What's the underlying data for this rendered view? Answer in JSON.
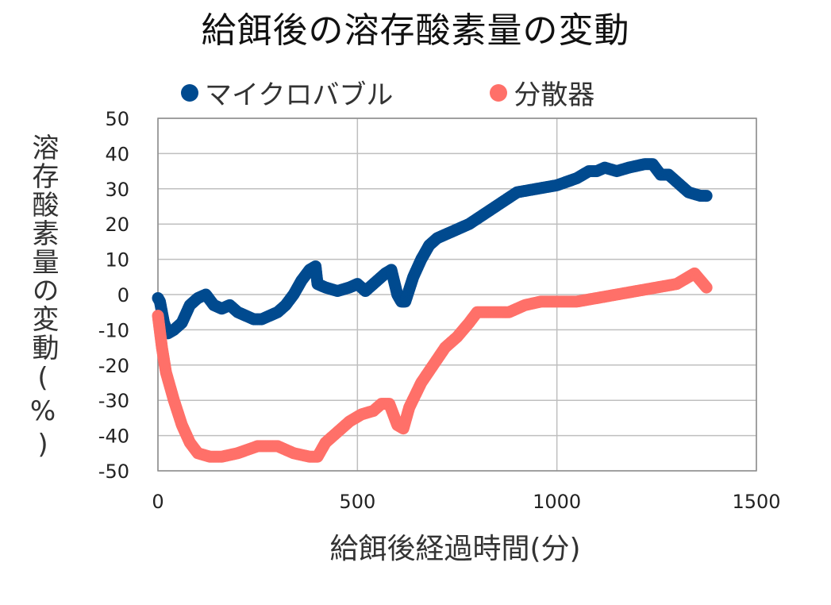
{
  "chart_data": {
    "type": "scatter",
    "title": "給餌後の溶存酸素量の変動",
    "xlabel": "給餌後経過時間(分)",
    "ylabel": "溶存酸素量の変動(%)",
    "xlim": [
      0,
      1500
    ],
    "ylim": [
      -50,
      50
    ],
    "x_ticks": [
      0,
      500,
      1000,
      1500
    ],
    "y_ticks": [
      50,
      40,
      30,
      20,
      10,
      0,
      -10,
      -20,
      -30,
      -40,
      -50
    ],
    "grid": true,
    "legend_position": "top",
    "series": [
      {
        "name": "マイクロバブル",
        "color": "#004A8F",
        "x": [
          0,
          5,
          15,
          25,
          40,
          60,
          80,
          100,
          120,
          140,
          160,
          180,
          200,
          220,
          240,
          260,
          280,
          300,
          320,
          340,
          360,
          380,
          395,
          400,
          420,
          450,
          480,
          500,
          520,
          540,
          570,
          585,
          600,
          610,
          620,
          640,
          660,
          680,
          700,
          740,
          780,
          820,
          860,
          900,
          950,
          1000,
          1050,
          1080,
          1100,
          1120,
          1150,
          1180,
          1220,
          1240,
          1260,
          1280,
          1300,
          1330,
          1360,
          1375
        ],
        "values": [
          -1,
          -2,
          -8,
          -11,
          -10,
          -8,
          -3,
          -1,
          0,
          -3,
          -4,
          -3,
          -5,
          -6,
          -7,
          -7,
          -6,
          -5,
          -3,
          0,
          4,
          7,
          8,
          3,
          2,
          1,
          2,
          3,
          1,
          3,
          6,
          7,
          0,
          -2,
          -2,
          5,
          10,
          14,
          16,
          18,
          20,
          23,
          26,
          29,
          30,
          31,
          33,
          35,
          35,
          36,
          35,
          36,
          37,
          37,
          34,
          34,
          32,
          29,
          28,
          28
        ]
      },
      {
        "name": "分散器",
        "color": "#FF7069",
        "x": [
          0,
          10,
          20,
          40,
          60,
          80,
          100,
          130,
          160,
          200,
          250,
          300,
          340,
          380,
          400,
          420,
          450,
          480,
          510,
          540,
          560,
          580,
          600,
          615,
          630,
          660,
          690,
          720,
          750,
          780,
          800,
          840,
          880,
          920,
          960,
          1000,
          1050,
          1100,
          1150,
          1200,
          1250,
          1300,
          1330,
          1345,
          1360,
          1375
        ],
        "values": [
          -6,
          -15,
          -22,
          -30,
          -37,
          -42,
          -45,
          -46,
          -46,
          -45,
          -43,
          -43,
          -45,
          -46,
          -46,
          -42,
          -39,
          -36,
          -34,
          -33,
          -31,
          -31,
          -37,
          -38,
          -32,
          -25,
          -20,
          -15,
          -12,
          -8,
          -5,
          -5,
          -5,
          -3,
          -2,
          -2,
          -2,
          -1,
          0,
          1,
          2,
          3,
          5,
          6,
          4,
          2
        ]
      }
    ]
  },
  "legend": {
    "items": [
      {
        "label": "マイクロバブル",
        "color": "#004A8F"
      },
      {
        "label": "分散器",
        "color": "#FF7069"
      }
    ]
  },
  "axis_colors": {
    "grid": "#BFBFBF",
    "axis": "#8C8C8C"
  }
}
